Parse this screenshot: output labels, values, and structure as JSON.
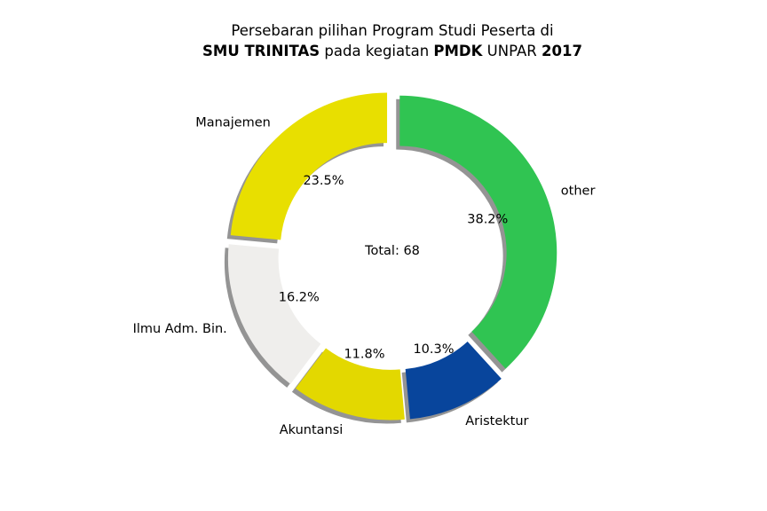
{
  "chart_data": {
    "type": "pie",
    "variant": "donut",
    "title": {
      "line1": "Persebaran pilihan Program Studi Peserta di",
      "line2": {
        "school": "SMU TRINITAS",
        "text1": "pada kegiatan",
        "event": "PMDK",
        "text2": "UNPAR",
        "year": "2017"
      }
    },
    "center_label": "Total: 68",
    "total": 68,
    "start_angle_deg": 90,
    "direction": "counterclockwise",
    "shadow": true,
    "slices": [
      {
        "label": "Manajemen",
        "count": 16,
        "percent": "23.5%",
        "color": "#E8DF00",
        "explode": 0.05
      },
      {
        "label": "Ilmu Adm. Bin.",
        "count": 11,
        "percent": "16.2%",
        "color": "#EFEEEC",
        "explode": 0.05
      },
      {
        "label": "Akuntansi",
        "count": 8,
        "percent": "11.8%",
        "color": "#E3D800",
        "explode": 0.05
      },
      {
        "label": "Aristektur",
        "count": 7,
        "percent": "10.3%",
        "color": "#08459C",
        "explode": 0.05
      },
      {
        "label": "other",
        "count": 26,
        "percent": "38.2%",
        "color": "#30C452",
        "explode": 0.05
      }
    ]
  }
}
